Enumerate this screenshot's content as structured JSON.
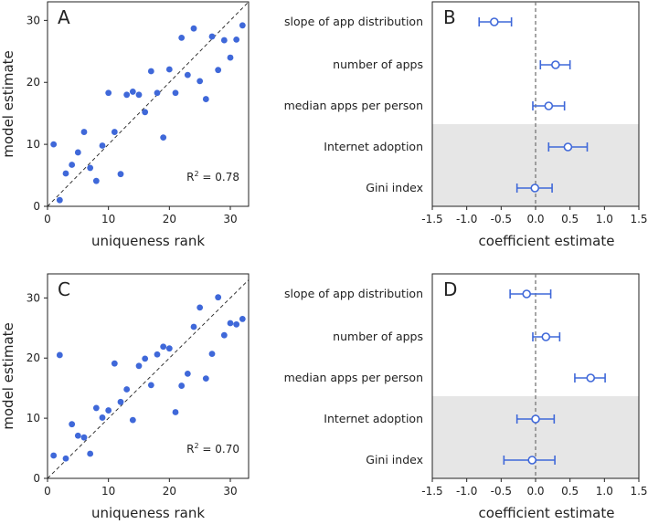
{
  "colors": {
    "point": "#3f68d9",
    "diag": "#222222",
    "shade": "#e6e6e6",
    "zero": "#777777"
  },
  "chart_data": [
    {
      "panel": "A",
      "type": "scatter",
      "xlabel": "uniqueness rank",
      "ylabel": "model estimate",
      "xlim": [
        0,
        33
      ],
      "ylim": [
        0,
        33
      ],
      "xticks": [
        0,
        10,
        20,
        30
      ],
      "yticks": [
        0,
        10,
        20,
        30
      ],
      "r2_label": "R",
      "r2_sup": "2",
      "r2_value": " = 0.78",
      "points": [
        [
          1,
          10
        ],
        [
          2,
          1
        ],
        [
          3,
          5.3
        ],
        [
          4,
          6.7
        ],
        [
          5,
          8.7
        ],
        [
          6,
          12
        ],
        [
          7,
          6.2
        ],
        [
          8,
          4.1
        ],
        [
          9,
          9.8
        ],
        [
          10,
          18.3
        ],
        [
          11,
          12
        ],
        [
          12,
          5.2
        ],
        [
          13,
          18
        ],
        [
          14,
          18.5
        ],
        [
          15,
          18
        ],
        [
          16,
          15.2
        ],
        [
          17,
          21.8
        ],
        [
          18,
          18.3
        ],
        [
          19,
          11.1
        ],
        [
          20,
          22.1
        ],
        [
          21,
          18.3
        ],
        [
          22,
          27.2
        ],
        [
          23,
          21.2
        ],
        [
          24,
          28.7
        ],
        [
          25,
          20.2
        ],
        [
          26,
          17.3
        ],
        [
          27,
          27.4
        ],
        [
          28,
          22
        ],
        [
          29,
          26.8
        ],
        [
          30,
          24
        ],
        [
          31,
          26.9
        ],
        [
          32,
          29.2
        ]
      ]
    },
    {
      "panel": "B",
      "type": "errorbar",
      "xlabel": "coefficient estimate",
      "xlim": [
        -1.5,
        1.5
      ],
      "xticks": [
        -1.5,
        -1.0,
        -0.5,
        0.0,
        0.5,
        1.0,
        1.5
      ],
      "xtick_labels": [
        "-1.5",
        "-1.0",
        "-0.5",
        "0.0",
        "0.5",
        "1.0",
        "1.5"
      ],
      "factors": [
        {
          "label": "slope of app distribution",
          "estimate": -0.6,
          "low": -0.82,
          "high": -0.35,
          "shaded": false
        },
        {
          "label": "number of apps",
          "estimate": 0.29,
          "low": 0.07,
          "high": 0.5,
          "shaded": false
        },
        {
          "label": "median apps per person",
          "estimate": 0.19,
          "low": -0.04,
          "high": 0.42,
          "shaded": false
        },
        {
          "label": "Internet adoption",
          "estimate": 0.47,
          "low": 0.19,
          "high": 0.75,
          "shaded": true
        },
        {
          "label": "Gini index",
          "estimate": -0.01,
          "low": -0.27,
          "high": 0.24,
          "shaded": true
        }
      ]
    },
    {
      "panel": "C",
      "type": "scatter",
      "xlabel": "uniqueness rank",
      "ylabel": "model estimate",
      "xlim": [
        0,
        33
      ],
      "ylim": [
        0,
        34
      ],
      "xticks": [
        0,
        10,
        20,
        30
      ],
      "yticks": [
        0,
        10,
        20,
        30
      ],
      "r2_label": "R",
      "r2_sup": "2",
      "r2_value": " = 0.70",
      "points": [
        [
          1,
          3.8
        ],
        [
          2,
          20.5
        ],
        [
          3,
          3.3
        ],
        [
          4,
          9
        ],
        [
          5,
          7.1
        ],
        [
          6,
          6.8
        ],
        [
          7,
          4.1
        ],
        [
          8,
          11.7
        ],
        [
          9,
          10.1
        ],
        [
          10,
          11.3
        ],
        [
          11,
          19.1
        ],
        [
          12,
          12.7
        ],
        [
          13,
          14.8
        ],
        [
          14,
          9.7
        ],
        [
          15,
          18.7
        ],
        [
          16,
          19.9
        ],
        [
          17,
          15.5
        ],
        [
          18,
          20.6
        ],
        [
          19,
          21.9
        ],
        [
          20,
          21.6
        ],
        [
          21,
          11
        ],
        [
          22,
          15.4
        ],
        [
          23,
          17.4
        ],
        [
          24,
          25.2
        ],
        [
          25,
          28.4
        ],
        [
          26,
          16.6
        ],
        [
          27,
          20.7
        ],
        [
          28,
          30.1
        ],
        [
          29,
          23.8
        ],
        [
          30,
          25.8
        ],
        [
          31,
          25.6
        ],
        [
          32,
          26.5
        ]
      ]
    },
    {
      "panel": "D",
      "type": "errorbar",
      "xlabel": "coefficient estimate",
      "xlim": [
        -1.5,
        1.5
      ],
      "xticks": [
        -1.5,
        -1.0,
        -0.5,
        0.0,
        0.5,
        1.0,
        1.5
      ],
      "xtick_labels": [
        "-1.5",
        "-1.0",
        "-0.5",
        "0.0",
        "0.5",
        "1.0",
        "1.5"
      ],
      "factors": [
        {
          "label": "slope of app distribution",
          "estimate": -0.13,
          "low": -0.37,
          "high": 0.22,
          "shaded": false
        },
        {
          "label": "number of apps",
          "estimate": 0.15,
          "low": -0.04,
          "high": 0.35,
          "shaded": false
        },
        {
          "label": "median apps per person",
          "estimate": 0.8,
          "low": 0.57,
          "high": 1.01,
          "shaded": false
        },
        {
          "label": "Internet adoption",
          "estimate": 0.0,
          "low": -0.27,
          "high": 0.27,
          "shaded": true
        },
        {
          "label": "Gini index",
          "estimate": -0.05,
          "low": -0.46,
          "high": 0.28,
          "shaded": true
        }
      ]
    }
  ]
}
